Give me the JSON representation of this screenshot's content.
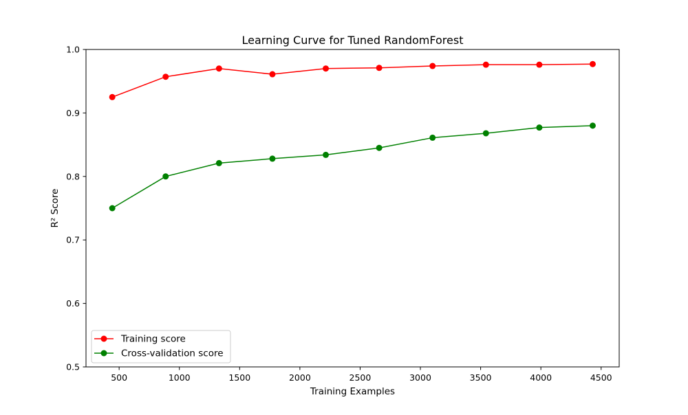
{
  "chart_data": {
    "type": "line",
    "title": "Learning Curve for Tuned RandomForest",
    "xlabel": "Training Examples",
    "ylabel": "R² Score",
    "xlim": [
      225,
      4650
    ],
    "ylim": [
      0.5,
      1.0
    ],
    "xticks": [
      500,
      1000,
      1500,
      2000,
      2500,
      3000,
      3500,
      4000,
      4500
    ],
    "yticks": [
      0.5,
      0.6,
      0.7,
      0.8,
      0.9,
      1.0
    ],
    "xtick_labels": [
      "500",
      "1000",
      "1500",
      "2000",
      "2500",
      "3000",
      "3500",
      "4000",
      "4500"
    ],
    "ytick_labels": [
      "0.5",
      "0.6",
      "0.7",
      "0.8",
      "0.9",
      "1.0"
    ],
    "grid": false,
    "legend_position": "lower-left",
    "x": [
      443,
      886,
      1329,
      1772,
      2215,
      2658,
      3101,
      3544,
      3987,
      4430
    ],
    "series": [
      {
        "name": "Training score",
        "color": "#ff0000",
        "marker": "circle",
        "values": [
          0.925,
          0.957,
          0.97,
          0.961,
          0.97,
          0.971,
          0.974,
          0.976,
          0.976,
          0.977
        ]
      },
      {
        "name": "Cross-validation score",
        "color": "#008000",
        "marker": "circle",
        "values": [
          0.75,
          0.8,
          0.821,
          0.828,
          0.834,
          0.845,
          0.861,
          0.868,
          0.877,
          0.88
        ]
      }
    ]
  }
}
